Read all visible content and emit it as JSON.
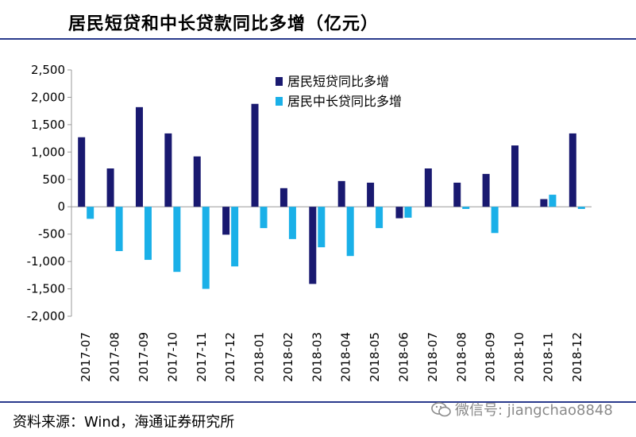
{
  "header": {
    "title": "居民短贷和中长贷款同比多增（亿元）"
  },
  "footer": {
    "source": "资料来源：Wind，海通证券研究所",
    "watermark": "微信号: jiangchao8848"
  },
  "colors": {
    "short_term": "#191970",
    "long_term": "#1ab0e8",
    "rule": "#2a3a8c",
    "axis": "#999999"
  },
  "chart_data": {
    "type": "bar",
    "title": "居民短贷和中长贷款同比多增（亿元）",
    "xlabel": "",
    "ylabel": "",
    "categories": [
      "2017-07",
      "2017-08",
      "2017-09",
      "2017-10",
      "2017-11",
      "2017-12",
      "2018-01",
      "2018-02",
      "2018-03",
      "2018-04",
      "2018-05",
      "2018-06",
      "2018-07",
      "2018-08",
      "2018-09",
      "2018-10",
      "2018-11",
      "2018-12"
    ],
    "series": [
      {
        "name": "居民短贷同比多增",
        "color": "#191970",
        "values": [
          1270,
          700,
          1820,
          1340,
          920,
          -510,
          1880,
          340,
          -1410,
          470,
          440,
          -210,
          700,
          440,
          600,
          1120,
          140,
          1340
        ]
      },
      {
        "name": "居民中长贷同比多增",
        "color": "#1ab0e8",
        "values": [
          -220,
          -810,
          -970,
          -1190,
          -1500,
          -1090,
          -390,
          -590,
          -740,
          -900,
          -390,
          -200,
          0,
          -40,
          -480,
          0,
          220,
          -40
        ]
      }
    ],
    "ylim": [
      -2000,
      2500
    ],
    "yticks": [
      2500,
      2000,
      1500,
      1000,
      500,
      0,
      -500,
      -1000,
      -1500,
      -2000
    ],
    "ytick_labels": [
      "2,500",
      "2,000",
      "1,500",
      "1,000",
      "500",
      "0",
      "-500",
      "-1,000",
      "-1,500",
      "-2,000"
    ],
    "grid": false,
    "legend_position": "top-center"
  }
}
